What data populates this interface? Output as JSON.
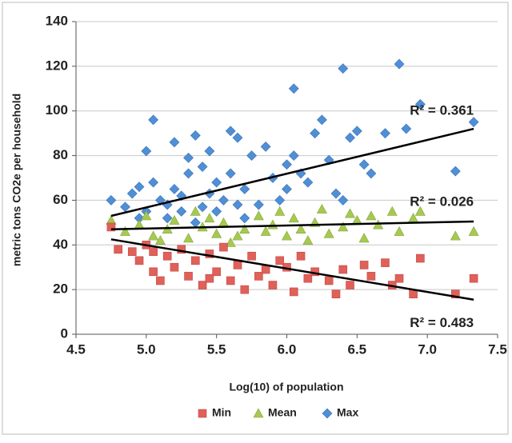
{
  "chart_data": {
    "type": "scatter",
    "x_label": "Log(10) of population",
    "y_label": "metric tons CO2e per household",
    "xlim": [
      4.5,
      7.5
    ],
    "xticks": [
      4.5,
      {
        "value": 5,
        "label": "5.0"
      },
      5.5,
      {
        "value": 6,
        "label": "6.0"
      },
      6.5,
      {
        "value": 7,
        "label": "7.0"
      },
      7.5
    ],
    "ylim": [
      0,
      140
    ],
    "yticks": [
      0,
      20,
      40,
      60,
      80,
      100,
      120,
      140
    ],
    "grid": true,
    "legend": "bottom",
    "series": [
      {
        "name": "Min",
        "color": "#e0605a",
        "marker": "square",
        "x": [
          4.75,
          4.8,
          4.9,
          4.95,
          5.0,
          5.05,
          5.1,
          5.15,
          5.2,
          5.25,
          5.3,
          5.35,
          5.4,
          5.45,
          5.5,
          5.55,
          5.6,
          5.65,
          5.7,
          5.75,
          5.8,
          5.85,
          5.9,
          6.0,
          6.05,
          6.1,
          6.15,
          6.2,
          6.3,
          6.35,
          6.4,
          6.45,
          6.55,
          6.6,
          6.7,
          6.75,
          6.8,
          6.9,
          6.95,
          7.2,
          7.33,
          5.05,
          5.45,
          5.95
        ],
        "values": [
          48,
          38,
          37,
          33,
          40,
          28,
          24,
          35,
          30,
          38,
          26,
          33,
          22,
          36,
          28,
          39,
          24,
          31,
          20,
          35,
          26,
          29,
          22,
          30,
          19,
          35,
          25,
          28,
          24,
          18,
          29,
          22,
          31,
          26,
          32,
          22,
          25,
          18,
          34,
          18,
          25,
          37,
          25,
          33
        ],
        "trendline": {
          "x": [
            4.75,
            7.33
          ],
          "y": [
            42.5,
            15.5
          ],
          "label": "R² = 0.483"
        }
      },
      {
        "name": "Mean",
        "color": "#a6c950",
        "marker": "triangle",
        "x": [
          4.75,
          4.85,
          4.95,
          5.0,
          5.05,
          5.15,
          5.2,
          5.3,
          5.4,
          5.45,
          5.5,
          5.55,
          5.65,
          5.7,
          5.8,
          5.85,
          5.9,
          6.0,
          6.05,
          6.1,
          6.2,
          6.25,
          6.3,
          6.4,
          6.45,
          6.5,
          6.55,
          6.65,
          6.75,
          6.8,
          6.9,
          6.95,
          7.2,
          7.33,
          5.1,
          5.35,
          5.6,
          6.15,
          5.95,
          6.6
        ],
        "values": [
          51,
          46,
          49,
          53,
          44,
          47,
          51,
          43,
          48,
          52,
          45,
          50,
          44,
          47,
          53,
          46,
          49,
          44,
          52,
          47,
          50,
          56,
          45,
          48,
          54,
          51,
          43,
          49,
          55,
          46,
          52,
          55,
          44,
          46,
          42,
          55,
          41,
          42,
          55,
          53
        ],
        "trendline": {
          "x": [
            4.75,
            7.33
          ],
          "y": [
            47,
            50.5
          ],
          "label": "R² = 0.026"
        }
      },
      {
        "name": "Max",
        "color": "#4f8fd6",
        "marker": "diamond",
        "x": [
          4.75,
          4.85,
          4.9,
          4.95,
          5.0,
          5.05,
          5.05,
          5.1,
          5.15,
          5.2,
          5.2,
          5.25,
          5.3,
          5.3,
          5.35,
          5.4,
          5.45,
          5.5,
          5.55,
          5.6,
          5.6,
          5.65,
          5.7,
          5.75,
          5.8,
          5.85,
          5.9,
          6.0,
          6.05,
          6.05,
          6.1,
          6.2,
          6.25,
          6.3,
          6.35,
          6.4,
          6.45,
          6.5,
          6.55,
          6.6,
          6.7,
          6.8,
          6.85,
          6.95,
          7.2,
          7.33,
          5.0,
          5.15,
          5.35,
          5.5,
          5.7,
          5.95,
          6.15,
          6.4,
          5.25,
          5.45,
          5.65,
          4.95,
          5.4,
          6.0
        ],
        "values": [
          60,
          57,
          63,
          66,
          82,
          96,
          68,
          60,
          58,
          86,
          65,
          55,
          72,
          79,
          89,
          75,
          82,
          68,
          60,
          91,
          72,
          88,
          65,
          80,
          58,
          84,
          70,
          76,
          110,
          80,
          72,
          90,
          96,
          78,
          63,
          119,
          88,
          91,
          76,
          72,
          90,
          121,
          92,
          103,
          73,
          95,
          55,
          52,
          50,
          55,
          52,
          60,
          68,
          60,
          62,
          63,
          58,
          52,
          57,
          65
        ],
        "trendline": {
          "x": [
            4.75,
            7.33
          ],
          "y": [
            53,
            92
          ],
          "label": "R² = 0.361"
        }
      }
    ]
  }
}
